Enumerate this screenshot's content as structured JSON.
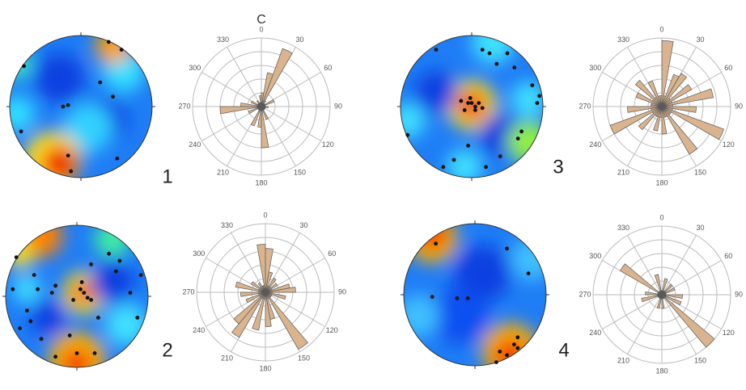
{
  "chart_data": [
    {
      "type": "stereonet",
      "label": "1",
      "xlim": [
        -1,
        1
      ],
      "ylim": [
        -1,
        1
      ],
      "x": [
        0.57,
        0.39,
        0.27,
        -0.25,
        -0.18,
        0.45,
        -0.84,
        -0.18,
        -0.14,
        0.51,
        -0.8
      ],
      "y": [
        0.8,
        0.91,
        0.34,
        0,
        0.02,
        0.14,
        -0.35,
        -0.69,
        -0.91,
        -0.73,
        0.57
      ]
    },
    {
      "type": "rose",
      "title": "C",
      "rlim": [
        0,
        5
      ],
      "thetaticks": [
        0,
        30,
        60,
        90,
        120,
        150,
        180,
        210,
        240,
        270,
        300,
        330
      ],
      "color": "#d9b48f",
      "values": [
        1.0,
        2.5,
        4.5,
        0.5,
        0.3,
        0.3,
        1.0,
        0.3,
        0.3,
        0.5,
        0.3,
        0.3,
        0.3,
        0.3,
        0.3,
        1.0,
        0.3,
        3.0,
        1.5,
        0.3,
        1.5,
        0.3,
        0.3,
        0.3,
        1.0,
        0.3,
        3.0,
        1.5,
        0.3,
        0.8,
        0.3,
        0.3,
        0.5,
        0.3,
        0.3,
        0.8
      ]
    },
    {
      "type": "stereonet",
      "label": "2",
      "xlim": [
        -1,
        1
      ],
      "ylim": [
        -1,
        1
      ],
      "x": [
        0.2,
        0.07,
        0.1,
        0.05,
        -0.05,
        0.15,
        0.2,
        -0.3,
        -0.35,
        -0.55,
        -0.6,
        -0.7,
        -0.65,
        -0.8,
        -0.9,
        0.55,
        0.6,
        0.75,
        0.85,
        0.3,
        -0.1,
        -0.3,
        0.0,
        0.25,
        -0.85,
        0.45,
        0.9,
        -0.5
      ],
      "y": [
        0.45,
        0.2,
        0.05,
        0.1,
        -0.05,
        -0.02,
        -0.05,
        0.15,
        0.05,
        0.1,
        0.3,
        -0.2,
        -0.35,
        -0.45,
        0.1,
        0.35,
        0.5,
        0.05,
        -0.3,
        -0.3,
        -0.55,
        -0.85,
        -0.8,
        -0.8,
        0.55,
        0.6,
        0.3,
        -0.6
      ]
    },
    {
      "type": "rose",
      "rlim": [
        0,
        5
      ],
      "thetaticks": [
        0,
        30,
        60,
        90,
        120,
        150,
        180,
        210,
        240,
        270,
        300,
        330
      ],
      "color": "#d9b48f",
      "values": [
        3.2,
        1.5,
        0.5,
        1.2,
        0.5,
        1.0,
        0.5,
        1.8,
        2.2,
        0.5,
        1.5,
        0.5,
        0.5,
        0.5,
        4.8,
        0.5,
        2.0,
        2.5,
        0.5,
        2.8,
        0.5,
        3.8,
        3.0,
        0.5,
        1.5,
        0.5,
        1.8,
        0.5,
        2.2,
        0.5,
        1.2,
        0.5,
        0.8,
        0.5,
        0.5,
        3.5
      ]
    },
    {
      "type": "stereonet",
      "label": "3",
      "xlim": [
        -1,
        1
      ],
      "ylim": [
        -1,
        1
      ],
      "x": [
        0,
        0.05,
        -0.05,
        0.1,
        -0.1,
        0.05,
        0.15,
        -0.15,
        -0.02,
        -0.5,
        0.15,
        0.25,
        0.35,
        0.5,
        0.85,
        0.95,
        0.92,
        0.7,
        0.65,
        -0.9,
        -0.25,
        -0.05,
        0.2,
        0.4,
        -0.4,
        0.6
      ],
      "y": [
        0.05,
        0,
        0.05,
        0.05,
        -0.05,
        -0.05,
        -0.02,
        0.08,
        0.12,
        0.8,
        0.8,
        0.75,
        0.6,
        0.75,
        0.3,
        0.15,
        0.05,
        -0.35,
        -0.45,
        -0.4,
        -0.75,
        -0.55,
        -0.85,
        -0.7,
        -0.85,
        0.55
      ]
    },
    {
      "type": "rose",
      "rlim": [
        0,
        5
      ],
      "thetaticks": [
        0,
        30,
        60,
        90,
        120,
        150,
        180,
        210,
        240,
        270,
        300,
        330
      ],
      "color": "#d9b48f",
      "values": [
        4.8,
        0.8,
        2.5,
        2.8,
        0.8,
        2.5,
        0.8,
        3.8,
        0.8,
        2.5,
        0.8,
        4.8,
        0.8,
        0.8,
        4.0,
        0.8,
        0.8,
        2.0,
        0.8,
        1.8,
        0.8,
        0.8,
        2.2,
        0.8,
        4.0,
        0.8,
        2.5,
        0.8,
        0.8,
        2.0,
        0.8,
        2.5,
        0.8,
        2.0,
        0.8,
        0.8
      ]
    },
    {
      "type": "stereonet",
      "label": "4",
      "xlim": [
        -1,
        1
      ],
      "ylim": [
        -1,
        1
      ],
      "x": [
        -0.55,
        -0.25,
        -0.1,
        -0.6,
        0.45,
        0.75,
        0.55,
        0.6,
        0.35,
        0.45,
        0.6,
        0.3
      ],
      "y": [
        0.72,
        -0.05,
        -0.05,
        -0.03,
        0.65,
        0.3,
        -0.7,
        -0.75,
        -0.8,
        -0.85,
        -0.6,
        -0.95
      ]
    },
    {
      "type": "rose",
      "rlim": [
        0,
        5
      ],
      "thetaticks": [
        0,
        30,
        60,
        90,
        120,
        150,
        180,
        210,
        240,
        270,
        300,
        330
      ],
      "color": "#d9b48f",
      "values": [
        0.3,
        1.2,
        0.3,
        0.3,
        1.0,
        0.3,
        1.0,
        0.3,
        0.3,
        1.5,
        0.3,
        1.5,
        0.3,
        5.0,
        0.3,
        0.3,
        0.3,
        1.0,
        0.3,
        1.0,
        0.3,
        0.3,
        0.3,
        0.3,
        0.3,
        1.5,
        0.3,
        1.2,
        0.3,
        0.3,
        3.5,
        0.3,
        0.3,
        0.3,
        1.5,
        0.3
      ]
    }
  ]
}
